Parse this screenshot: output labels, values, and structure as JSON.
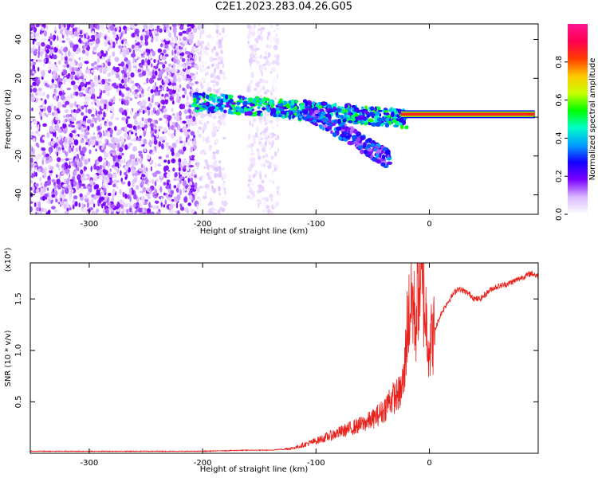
{
  "title": "C2E1.2023.283.04.26.G05",
  "chart_data": [
    {
      "type": "heatmap",
      "xlabel": "Height of straight line (km)",
      "ylabel": "Frequency (Hz)",
      "xlim": [
        -352,
        96
      ],
      "ylim": [
        -50,
        48
      ],
      "x_ticks": [
        -300,
        -200,
        -100,
        0
      ],
      "y_ticks": [
        -40,
        -20,
        0,
        20,
        40
      ],
      "grid": false,
      "colorbar": {
        "label": "Normalized spectral amplitude",
        "range": [
          0,
          1
        ],
        "ticks": [
          0.0,
          0.2,
          0.4,
          0.6,
          0.8
        ],
        "colormap": [
          "#ffffff",
          "#d9b8ff",
          "#7b00ff",
          "#1400ff",
          "#00a0ff",
          "#00ffc8",
          "#00ff00",
          "#c8ff00",
          "#ffc800",
          "#ff3c00",
          "#ff0050",
          "#ff1493"
        ]
      },
      "features": [
        {
          "name": "noise",
          "x_range": [
            -352,
            -205
          ],
          "y_range": [
            -50,
            48
          ],
          "amplitude": 0.12
        },
        {
          "name": "noise",
          "x_range": [
            -205,
            -180
          ],
          "y_range": [
            -50,
            48
          ],
          "amplitude": 0.05
        },
        {
          "name": "noise",
          "x_range": [
            -160,
            -133
          ],
          "y_range": [
            -50,
            48
          ],
          "amplitude": 0.04
        },
        {
          "name": "signal",
          "x_range": [
            -208,
            -20
          ],
          "y_start": 8,
          "y_end": -1,
          "amplitude": 0.3
        },
        {
          "name": "signal_branch",
          "x_range": [
            -110,
            -35
          ],
          "y_start": 4,
          "y_end": -22,
          "amplitude": 0.2
        },
        {
          "name": "carrier",
          "x_range": [
            -25,
            93
          ],
          "y": 1.5,
          "amplitude": 0.85
        }
      ]
    },
    {
      "type": "line",
      "xlabel": "Height of straight line (km)",
      "ylabel": "SNR (10 * v/v)",
      "y_multiplier": "(x10⁴)",
      "xlim": [
        -352,
        96
      ],
      "ylim": [
        0,
        1.85
      ],
      "x_ticks": [
        -300,
        -200,
        -100,
        0
      ],
      "y_ticks": [
        0.5,
        1.0,
        1.5
      ],
      "y_tick_labels": [
        "0.5",
        "1.0",
        "1.5"
      ],
      "grid": false,
      "color": "#e8231e",
      "series": [
        {
          "x": [
            -352,
            -300,
            -250,
            -200,
            -160,
            -140,
            -120,
            -100,
            -80,
            -60,
            -50,
            -40,
            -35,
            -30,
            -25,
            -22,
            -20,
            -18,
            -15,
            -12,
            -10,
            -8,
            -5,
            0,
            5,
            10,
            15,
            20,
            25,
            30,
            35,
            40,
            45,
            50,
            55,
            60,
            70,
            80,
            90,
            96
          ],
          "y": [
            0.02,
            0.02,
            0.02,
            0.02,
            0.03,
            0.03,
            0.05,
            0.12,
            0.2,
            0.28,
            0.33,
            0.42,
            0.52,
            0.55,
            0.6,
            0.75,
            1.2,
            1.35,
            1.5,
            1.25,
            1.6,
            1.7,
            1.5,
            1.05,
            1.2,
            1.35,
            1.45,
            1.53,
            1.6,
            1.58,
            1.55,
            1.5,
            1.5,
            1.55,
            1.6,
            1.62,
            1.65,
            1.7,
            1.75,
            1.72
          ]
        }
      ]
    }
  ]
}
